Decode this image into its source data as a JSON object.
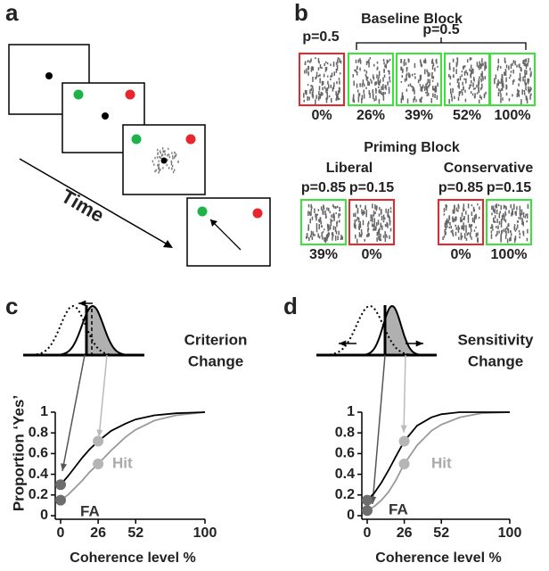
{
  "panels": {
    "a": {
      "letter": "a",
      "annotation": "Time"
    },
    "b": {
      "letter": "b",
      "baseline": {
        "title": "Baseline Block",
        "probabilities": [
          "p=0.5",
          "p=0.5"
        ],
        "stimuli": [
          {
            "label": "0%",
            "border": "#e8262b"
          },
          {
            "label": "26%",
            "border": "#3ee03e"
          },
          {
            "label": "39%",
            "border": "#3ee03e"
          },
          {
            "label": "52%",
            "border": "#3ee03e"
          },
          {
            "label": "100%",
            "border": "#3ee03e"
          }
        ]
      },
      "priming": {
        "title": "Priming Block",
        "conditions": [
          {
            "name": "Liberal",
            "probabilities": [
              "p=0.85",
              "p=0.15"
            ],
            "stimuli": [
              {
                "label": "39%",
                "border": "#3ee03e"
              },
              {
                "label": "0%",
                "border": "#e8262b"
              }
            ]
          },
          {
            "name": "Conservative",
            "probabilities": [
              "p=0.85",
              "p=0.15"
            ],
            "stimuli": [
              {
                "label": "0%",
                "border": "#e8262b"
              },
              {
                "label": "100%",
                "border": "#3ee03e"
              }
            ]
          }
        ]
      }
    }
  },
  "chart_data": [
    {
      "type": "line",
      "panel_label": "c",
      "annotation": [
        "Criterion",
        "Change"
      ],
      "x_label": "Coherence level %",
      "y_label": "Proportion ‘Yes’",
      "xlim": [
        0,
        100
      ],
      "ylim": [
        0,
        1
      ],
      "xticks": [
        0,
        26,
        52,
        100
      ],
      "yticks": [
        0,
        0.2,
        0.4,
        0.6,
        0.8,
        1
      ],
      "x": [
        0,
        5,
        10,
        15,
        20,
        26,
        35,
        45,
        52,
        65,
        80,
        100
      ],
      "series": [
        {
          "color": "#000000",
          "values": [
            0.3,
            0.38,
            0.47,
            0.56,
            0.64,
            0.72,
            0.82,
            0.89,
            0.93,
            0.97,
            0.99,
            1.0
          ]
        },
        {
          "color": "#999999",
          "values": [
            0.15,
            0.2,
            0.27,
            0.34,
            0.42,
            0.5,
            0.63,
            0.76,
            0.83,
            0.92,
            0.97,
            1.0
          ]
        }
      ],
      "points": {
        "x": [
          0,
          0,
          26,
          26
        ],
        "values": [
          0.3,
          0.15,
          0.72,
          0.5
        ],
        "colors": [
          "#6d6d6d",
          "#6d6d6d",
          "#b5b5b5",
          "#b5b5b5"
        ]
      },
      "point_labels": [
        "FA",
        "Hit"
      ]
    },
    {
      "type": "line",
      "panel_label": "d",
      "annotation": [
        "Sensitivity",
        "Change"
      ],
      "x_label": "Coherence level %",
      "xlim": [
        0,
        100
      ],
      "ylim": [
        0,
        1
      ],
      "xticks": [
        0,
        26,
        52,
        100
      ],
      "yticks": [
        0,
        0.2,
        0.4,
        0.6,
        0.8,
        1
      ],
      "x": [
        0,
        5,
        10,
        15,
        20,
        26,
        35,
        45,
        52,
        65,
        80,
        100
      ],
      "series": [
        {
          "color": "#000000",
          "values": [
            0.15,
            0.22,
            0.32,
            0.44,
            0.57,
            0.72,
            0.87,
            0.95,
            0.98,
            1.0,
            1.0,
            1.0
          ]
        },
        {
          "color": "#999999",
          "values": [
            0.05,
            0.09,
            0.15,
            0.23,
            0.34,
            0.5,
            0.68,
            0.82,
            0.88,
            0.95,
            0.99,
            1.0
          ]
        }
      ],
      "points": {
        "x": [
          0,
          0,
          26,
          26
        ],
        "values": [
          0.15,
          0.05,
          0.72,
          0.5
        ],
        "colors": [
          "#6d6d6d",
          "#6d6d6d",
          "#b5b5b5",
          "#b5b5b5"
        ]
      },
      "point_labels": [
        "FA",
        "Hit"
      ]
    }
  ]
}
